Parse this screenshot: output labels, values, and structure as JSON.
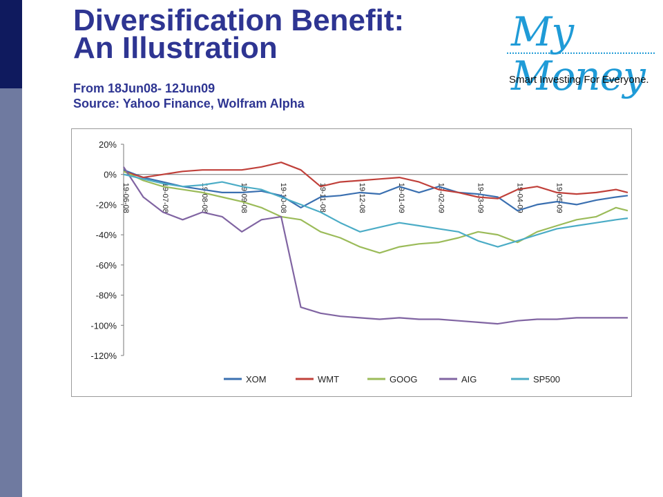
{
  "header": {
    "title_line1": "Diversification Benefit:",
    "title_line2": "An Illustration",
    "subtitle_line1": "From 18Jun08- 12Jun09",
    "subtitle_line2": "Source: Yahoo Finance, Wolfram Alpha"
  },
  "logo": {
    "text": "My Money",
    "tagline": "Smart Investing For Everyone."
  },
  "colors": {
    "title": "#2e3592",
    "sidebar_dark": "#0f1a5e",
    "sidebar_light": "#6f7aa0",
    "logo": "#1f9bd7"
  },
  "chart_data": {
    "type": "line",
    "title": "",
    "xlabel": "",
    "ylabel": "",
    "ylim": [
      -120,
      20
    ],
    "yticks": [
      20,
      0,
      -20,
      -40,
      -60,
      -80,
      -100,
      -120
    ],
    "ytick_labels": [
      "20%",
      "0%",
      "-20%",
      "-40%",
      "-60%",
      "-80%",
      "-100%",
      "-120%"
    ],
    "x_tick_labels": [
      "19-06-08",
      "19-07-08",
      "19-08-08",
      "19-09-08",
      "19-10-08",
      "19-11-08",
      "19-12-08",
      "19-01-09",
      "19-02-09",
      "19-03-09",
      "19-04-09",
      "19-05-09"
    ],
    "xlim": [
      0,
      12.8
    ],
    "grid": false,
    "legend_position": "bottom",
    "x": [
      0,
      0.5,
      1,
      1.5,
      2,
      2.5,
      3,
      3.5,
      4,
      4.5,
      5,
      5.5,
      6,
      6.5,
      7,
      7.5,
      8,
      8.5,
      9,
      9.5,
      10,
      10.5,
      11,
      11.5,
      12,
      12.5,
      12.8
    ],
    "series": [
      {
        "name": "XOM",
        "color": "#3a6fb0",
        "values": [
          3,
          -2,
          -5,
          -8,
          -10,
          -12,
          -12,
          -11,
          -14,
          -22,
          -15,
          -14,
          -12,
          -13,
          -8,
          -12,
          -8,
          -12,
          -13,
          -15,
          -24,
          -20,
          -18,
          -20,
          -17,
          -15,
          -14
        ]
      },
      {
        "name": "WMT",
        "color": "#c0403a",
        "values": [
          2,
          -2,
          0,
          2,
          3,
          3,
          3,
          5,
          8,
          3,
          -8,
          -5,
          -4,
          -3,
          -2,
          -5,
          -10,
          -12,
          -15,
          -16,
          -10,
          -8,
          -12,
          -13,
          -12,
          -10,
          -12
        ]
      },
      {
        "name": "GOOG",
        "color": "#9bbb59",
        "values": [
          2,
          -4,
          -8,
          -10,
          -12,
          -15,
          -18,
          -22,
          -28,
          -30,
          -38,
          -42,
          -48,
          -52,
          -48,
          -46,
          -45,
          -42,
          -38,
          -40,
          -45,
          -38,
          -34,
          -30,
          -28,
          -22,
          -24
        ]
      },
      {
        "name": "AIG",
        "color": "#8064a2",
        "values": [
          5,
          -15,
          -25,
          -30,
          -25,
          -28,
          -38,
          -30,
          -28,
          -88,
          -92,
          -94,
          -95,
          -96,
          -95,
          -96,
          -96,
          -97,
          -98,
          -99,
          -97,
          -96,
          -96,
          -95,
          -95,
          -95,
          -95
        ]
      },
      {
        "name": "SP500",
        "color": "#4bacc6",
        "values": [
          0,
          -3,
          -6,
          -8,
          -7,
          -5,
          -8,
          -10,
          -15,
          -20,
          -25,
          -32,
          -38,
          -35,
          -32,
          -34,
          -36,
          -38,
          -44,
          -48,
          -44,
          -40,
          -36,
          -34,
          -32,
          -30,
          -29
        ]
      }
    ]
  }
}
